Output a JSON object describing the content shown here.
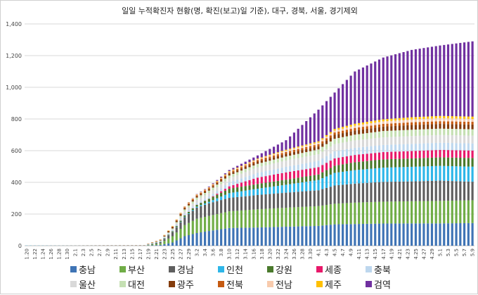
{
  "chart_data": {
    "type": "bar",
    "stacked": true,
    "title": "일일 누적확진자 현황(명, 확진(보고)일 기준), 대구, 경북, 서울, 경기제외",
    "xlabel": "",
    "ylabel": "",
    "ylim": [
      0,
      1400
    ],
    "yticks": [
      "0",
      "200",
      "400",
      "600",
      "800",
      "1,000",
      "1,200",
      "1,400"
    ],
    "grid": true,
    "legend_position": "bottom",
    "x_tick_labels": [
      "1.20",
      "1.22",
      "1.24",
      "1.26",
      "1.28",
      "1.30",
      "2.1",
      "2.3",
      "2.5",
      "2.7",
      "2.9",
      "2.11",
      "2.13",
      "2.15",
      "2.17",
      "2.19",
      "2.21",
      "2.23",
      "2.25",
      "2.27",
      "2.29",
      "3.2",
      "3.4",
      "3.6",
      "3.8",
      "3.10",
      "3.12",
      "3.14",
      "3.16",
      "3.18",
      "3.20",
      "3.22",
      "3.24",
      "3.26",
      "3.28",
      "3.30",
      "4.1",
      "4.3",
      "4.5",
      "4.7",
      "4.9",
      "4.11",
      "4.13",
      "4.15",
      "4.17",
      "4.19",
      "4.21",
      "4.23",
      "4.25",
      "4.27",
      "4.29",
      "5.1",
      "5.3",
      "5.5",
      "5.7",
      "5.9"
    ],
    "series": [
      {
        "name": "충남",
        "color": "#3f74b5"
      },
      {
        "name": "부산",
        "color": "#70ad47"
      },
      {
        "name": "경남",
        "color": "#5f5f5f"
      },
      {
        "name": "인천",
        "color": "#2eb6e8"
      },
      {
        "name": "강원",
        "color": "#4a7a2c"
      },
      {
        "name": "세종",
        "color": "#e8196a"
      },
      {
        "name": "충북",
        "color": "#bdd7ee"
      },
      {
        "name": "울산",
        "color": "#d9d9d9"
      },
      {
        "name": "대전",
        "color": "#c5e0b3"
      },
      {
        "name": "광주",
        "color": "#843c0c"
      },
      {
        "name": "전북",
        "color": "#c55a11"
      },
      {
        "name": "전남",
        "color": "#f8cbad"
      },
      {
        "name": "제주",
        "color": "#ffc000"
      },
      {
        "name": "검역",
        "color": "#7030a0"
      }
    ],
    "keyframes": [
      {
        "day": 0,
        "v": [
          0,
          0,
          0,
          1,
          0,
          0,
          0,
          0,
          0,
          0,
          0,
          0,
          0,
          0
        ]
      },
      {
        "day": 29,
        "v": [
          0,
          0,
          0,
          1,
          0,
          0,
          1,
          0,
          0,
          1,
          1,
          0,
          0,
          0
        ]
      },
      {
        "day": 33,
        "v": [
          5,
          10,
          8,
          1,
          2,
          0,
          3,
          2,
          2,
          3,
          2,
          1,
          1,
          0
        ]
      },
      {
        "day": 36,
        "v": [
          20,
          40,
          25,
          1,
          5,
          1,
          7,
          5,
          5,
          9,
          3,
          2,
          2,
          0
        ]
      },
      {
        "day": 39,
        "v": [
          60,
          70,
          50,
          3,
          8,
          1,
          10,
          15,
          12,
          9,
          5,
          3,
          2,
          1
        ]
      },
      {
        "day": 42,
        "v": [
          80,
          90,
          70,
          6,
          12,
          1,
          11,
          20,
          14,
          9,
          6,
          3,
          2,
          2
        ]
      },
      {
        "day": 45,
        "v": [
          93,
          95,
          80,
          9,
          19,
          1,
          12,
          23,
          16,
          9,
          7,
          3,
          2,
          4
        ]
      },
      {
        "day": 50,
        "v": [
          112,
          105,
          85,
          30,
          28,
          15,
          25,
          25,
          18,
          12,
          8,
          3,
          4,
          8
        ]
      },
      {
        "day": 57,
        "v": [
          115,
          115,
          90,
          40,
          30,
          40,
          30,
          35,
          22,
          14,
          10,
          5,
          4,
          20
        ]
      },
      {
        "day": 64,
        "v": [
          120,
          120,
          95,
          50,
          32,
          46,
          35,
          40,
          25,
          17,
          12,
          8,
          6,
          60
        ]
      },
      {
        "day": 72,
        "v": [
          125,
          125,
          100,
          65,
          35,
          46,
          40,
          42,
          30,
          20,
          13,
          10,
          8,
          200
        ]
      },
      {
        "day": 76,
        "v": [
          135,
          130,
          115,
          80,
          45,
          46,
          45,
          45,
          34,
          25,
          15,
          12,
          10,
          230
        ]
      },
      {
        "day": 81,
        "v": [
          137,
          135,
          120,
          85,
          50,
          46,
          45,
          47,
          36,
          26,
          16,
          15,
          12,
          330
        ]
      },
      {
        "day": 88,
        "v": [
          140,
          138,
          125,
          90,
          52,
          46,
          45,
          48,
          40,
          28,
          17,
          16,
          13,
          390
        ]
      },
      {
        "day": 95,
        "v": [
          141,
          140,
          125,
          92,
          53,
          47,
          45,
          49,
          40,
          30,
          17,
          18,
          14,
          425
        ]
      },
      {
        "day": 102,
        "v": [
          141,
          142,
          128,
          93,
          54,
          47,
          45,
          49,
          40,
          30,
          17,
          19,
          14,
          445
        ]
      },
      {
        "day": 110,
        "v": [
          143,
          144,
          117,
          95,
          55,
          47,
          45,
          49,
          40,
          30,
          17,
          18,
          15,
          475
        ]
      }
    ]
  },
  "legend_rows": [
    [
      "충남",
      "부산",
      "경남",
      "인천",
      "강원",
      "세종",
      "충북"
    ],
    [
      "울산",
      "대전",
      "광주",
      "전북",
      "전남",
      "제주",
      "검역"
    ]
  ]
}
